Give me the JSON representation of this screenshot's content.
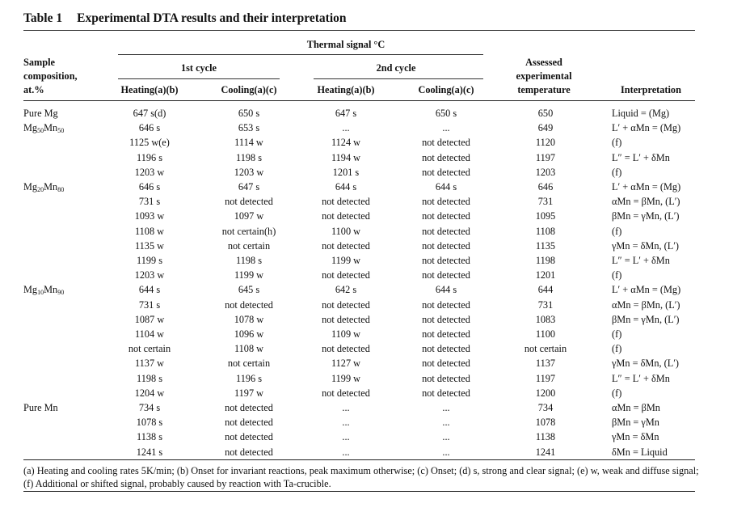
{
  "title": {
    "label": "Table 1",
    "text": "Experimental DTA results and their interpretation"
  },
  "header": {
    "thermal_signal": "Thermal signal °C",
    "cycle1": "1st cycle",
    "cycle2": "2nd cycle",
    "sample": [
      "Sample",
      "composition,",
      "at.%"
    ],
    "heating1": "Heating(a)(b)",
    "cooling1": "Cooling(a)(c)",
    "heating2": "Heating(a)(b)",
    "cooling2": "Cooling(a)(c)",
    "assessed": [
      "Assessed",
      "experimental",
      "temperature"
    ],
    "interpretation": "Interpretation"
  },
  "rows": [
    {
      "sample": "Pure Mg",
      "sub1": "",
      "mid": "",
      "sub2": "",
      "h1": "647 s(d)",
      "c1": "650 s",
      "h2": "647 s",
      "c2": "650 s",
      "t": "650",
      "i": "Liquid = (Mg)"
    },
    {
      "sample": "Mg",
      "sub1": "50",
      "mid": "Mn",
      "sub2": "50",
      "h1": "646 s",
      "c1": "653 s",
      "h2": "...",
      "c2": "...",
      "t": "649",
      "i": "L′ + αMn = (Mg)"
    },
    {
      "sample": "",
      "sub1": "",
      "mid": "",
      "sub2": "",
      "h1": "1125 w(e)",
      "c1": "1114 w",
      "h2": "1124 w",
      "c2": "not detected",
      "t": "1120",
      "i": "(f)"
    },
    {
      "sample": "",
      "sub1": "",
      "mid": "",
      "sub2": "",
      "h1": "1196 s",
      "c1": "1198 s",
      "h2": "1194 w",
      "c2": "not detected",
      "t": "1197",
      "i": "L″ = L′ + δMn"
    },
    {
      "sample": "",
      "sub1": "",
      "mid": "",
      "sub2": "",
      "h1": "1203 w",
      "c1": "1203 w",
      "h2": "1201 s",
      "c2": "not detected",
      "t": "1203",
      "i": "(f)"
    },
    {
      "sample": "Mg",
      "sub1": "20",
      "mid": "Mn",
      "sub2": "80",
      "h1": "646 s",
      "c1": "647 s",
      "h2": "644 s",
      "c2": "644 s",
      "t": "646",
      "i": "L′ + αMn = (Mg)"
    },
    {
      "sample": "",
      "sub1": "",
      "mid": "",
      "sub2": "",
      "h1": "731 s",
      "c1": "not detected",
      "h2": "not detected",
      "c2": "not detected",
      "t": "731",
      "i": "αMn = βMn, (L′)"
    },
    {
      "sample": "",
      "sub1": "",
      "mid": "",
      "sub2": "",
      "h1": "1093 w",
      "c1": "1097 w",
      "h2": "not detected",
      "c2": "not detected",
      "t": "1095",
      "i": "βMn = γMn, (L′)"
    },
    {
      "sample": "",
      "sub1": "",
      "mid": "",
      "sub2": "",
      "h1": "1108 w",
      "c1": "not certain(h)",
      "h2": "1100 w",
      "c2": "not detected",
      "t": "1108",
      "i": "(f)"
    },
    {
      "sample": "",
      "sub1": "",
      "mid": "",
      "sub2": "",
      "h1": "1135 w",
      "c1": "not certain",
      "h2": "not detected",
      "c2": "not detected",
      "t": "1135",
      "i": "γMn = δMn, (L′)"
    },
    {
      "sample": "",
      "sub1": "",
      "mid": "",
      "sub2": "",
      "h1": "1199 s",
      "c1": "1198 s",
      "h2": "1199 w",
      "c2": "not detected",
      "t": "1198",
      "i": "L″ = L′ + δMn"
    },
    {
      "sample": "",
      "sub1": "",
      "mid": "",
      "sub2": "",
      "h1": "1203 w",
      "c1": "1199 w",
      "h2": "not detected",
      "c2": "not detected",
      "t": "1201",
      "i": "(f)"
    },
    {
      "sample": "Mg",
      "sub1": "10",
      "mid": "Mn",
      "sub2": "90",
      "h1": "644 s",
      "c1": "645 s",
      "h2": "642 s",
      "c2": "644 s",
      "t": "644",
      "i": "L′ + αMn = (Mg)"
    },
    {
      "sample": "",
      "sub1": "",
      "mid": "",
      "sub2": "",
      "h1": "731 s",
      "c1": "not detected",
      "h2": "not detected",
      "c2": "not detected",
      "t": "731",
      "i": "αMn = βMn, (L′)"
    },
    {
      "sample": "",
      "sub1": "",
      "mid": "",
      "sub2": "",
      "h1": "1087 w",
      "c1": "1078 w",
      "h2": "not detected",
      "c2": "not detected",
      "t": "1083",
      "i": "βMn = γMn, (L′)"
    },
    {
      "sample": "",
      "sub1": "",
      "mid": "",
      "sub2": "",
      "h1": "1104 w",
      "c1": "1096 w",
      "h2": "1109 w",
      "c2": "not detected",
      "t": "1100",
      "i": "(f)"
    },
    {
      "sample": "",
      "sub1": "",
      "mid": "",
      "sub2": "",
      "h1": "not certain",
      "c1": "1108 w",
      "h2": "not detected",
      "c2": "not detected",
      "t": "not certain",
      "i": "(f)"
    },
    {
      "sample": "",
      "sub1": "",
      "mid": "",
      "sub2": "",
      "h1": "1137 w",
      "c1": "not certain",
      "h2": "1127 w",
      "c2": "not detected",
      "t": "1137",
      "i": "γMn = δMn, (L′)"
    },
    {
      "sample": "",
      "sub1": "",
      "mid": "",
      "sub2": "",
      "h1": "1198 s",
      "c1": "1196 s",
      "h2": "1199 w",
      "c2": "not detected",
      "t": "1197",
      "i": "L″ = L′ + δMn"
    },
    {
      "sample": "",
      "sub1": "",
      "mid": "",
      "sub2": "",
      "h1": "1204 w",
      "c1": "1197 w",
      "h2": "not detected",
      "c2": "not detected",
      "t": "1200",
      "i": "(f)"
    },
    {
      "sample": "Pure Mn",
      "sub1": "",
      "mid": "",
      "sub2": "",
      "h1": "734 s",
      "c1": "not detected",
      "h2": "...",
      "c2": "...",
      "t": "734",
      "i": "αMn = βMn"
    },
    {
      "sample": "",
      "sub1": "",
      "mid": "",
      "sub2": "",
      "h1": "1078 s",
      "c1": "not detected",
      "h2": "...",
      "c2": "...",
      "t": "1078",
      "i": "βMn = γMn"
    },
    {
      "sample": "",
      "sub1": "",
      "mid": "",
      "sub2": "",
      "h1": "1138 s",
      "c1": "not detected",
      "h2": "...",
      "c2": "...",
      "t": "1138",
      "i": "γMn = δMn"
    },
    {
      "sample": "",
      "sub1": "",
      "mid": "",
      "sub2": "",
      "h1": "1241 s",
      "c1": "not detected",
      "h2": "...",
      "c2": "...",
      "t": "1241",
      "i": "δMn = Liquid"
    }
  ],
  "footnote": "(a) Heating and cooling rates 5K/min; (b) Onset for invariant reactions, peak maximum otherwise; (c) Onset; (d) s, strong and clear signal; (e) w, weak and diffuse signal; (f) Additional or shifted signal, probably caused by reaction with Ta-crucible."
}
